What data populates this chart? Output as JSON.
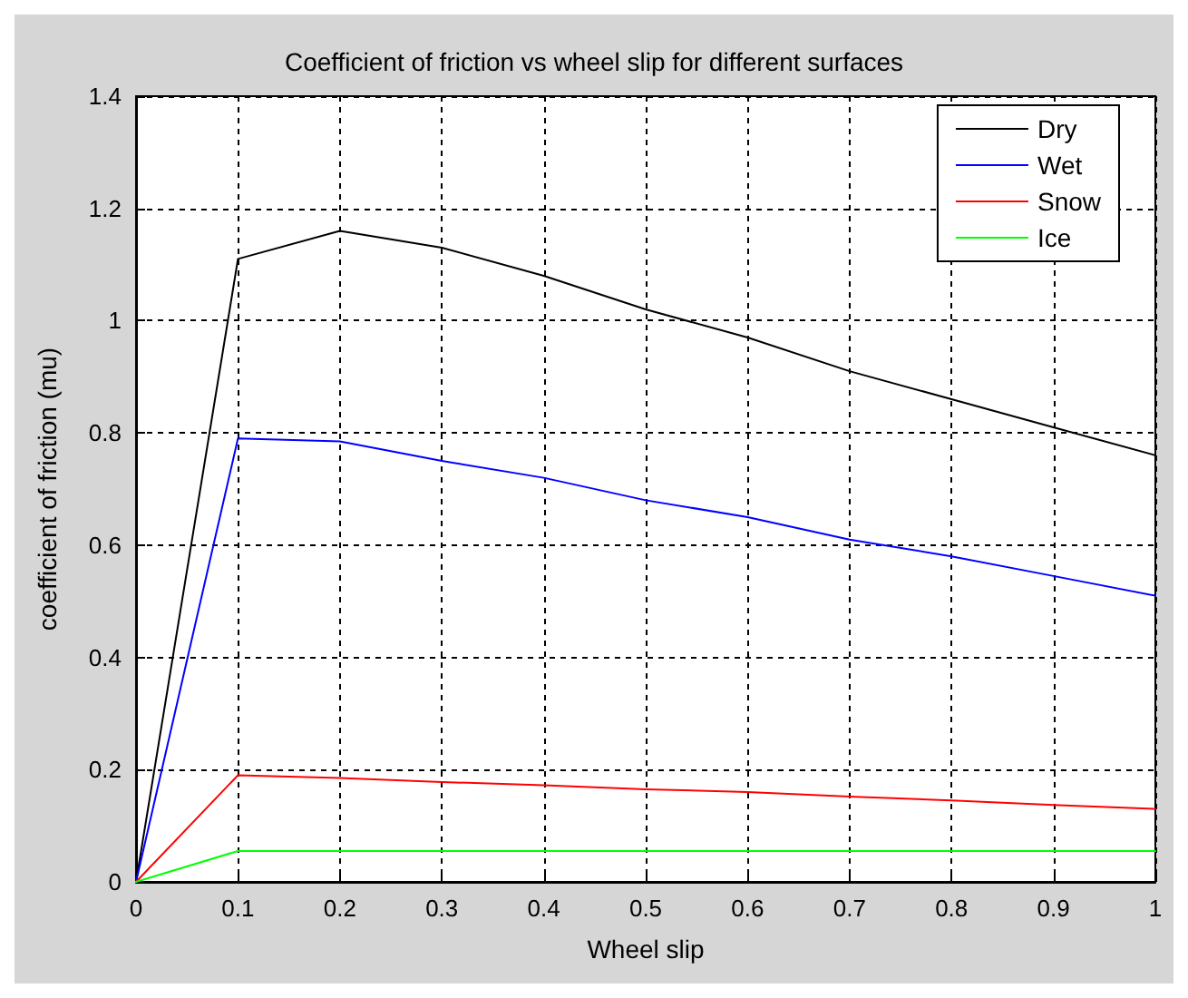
{
  "chart_data": {
    "type": "line",
    "title": "Coefficient of friction vs wheel slip for different surfaces",
    "xlabel": "Wheel slip",
    "ylabel": "coefficient of friction (mu)",
    "x": [
      0,
      0.1,
      0.2,
      0.3,
      0.4,
      0.5,
      0.6,
      0.7,
      0.8,
      0.9,
      1
    ],
    "series": [
      {
        "name": "Dry",
        "color": "#000000",
        "values": [
          0,
          1.11,
          1.16,
          1.13,
          1.08,
          1.02,
          0.97,
          0.91,
          0.86,
          0.81,
          0.76
        ]
      },
      {
        "name": "Wet",
        "color": "#0000ff",
        "values": [
          0,
          0.79,
          0.785,
          0.75,
          0.72,
          0.68,
          0.65,
          0.61,
          0.58,
          0.545,
          0.51
        ]
      },
      {
        "name": "Snow",
        "color": "#ff0000",
        "values": [
          0,
          0.19,
          0.185,
          0.178,
          0.172,
          0.165,
          0.16,
          0.152,
          0.145,
          0.137,
          0.13
        ]
      },
      {
        "name": "Ice",
        "color": "#00ff00",
        "values": [
          0,
          0.055,
          0.055,
          0.055,
          0.055,
          0.055,
          0.055,
          0.055,
          0.055,
          0.055,
          0.055
        ]
      }
    ],
    "xlim": [
      0,
      1
    ],
    "xticks": [
      0,
      0.1,
      0.2,
      0.3,
      0.4,
      0.5,
      0.6,
      0.7,
      0.8,
      0.9,
      1
    ],
    "ylim": [
      0,
      1.4
    ],
    "yticks": [
      0,
      0.2,
      0.4,
      0.6,
      0.8,
      1,
      1.2,
      1.4
    ],
    "grid": true,
    "legend": "top right",
    "marker": "none",
    "line_style": "solid"
  }
}
